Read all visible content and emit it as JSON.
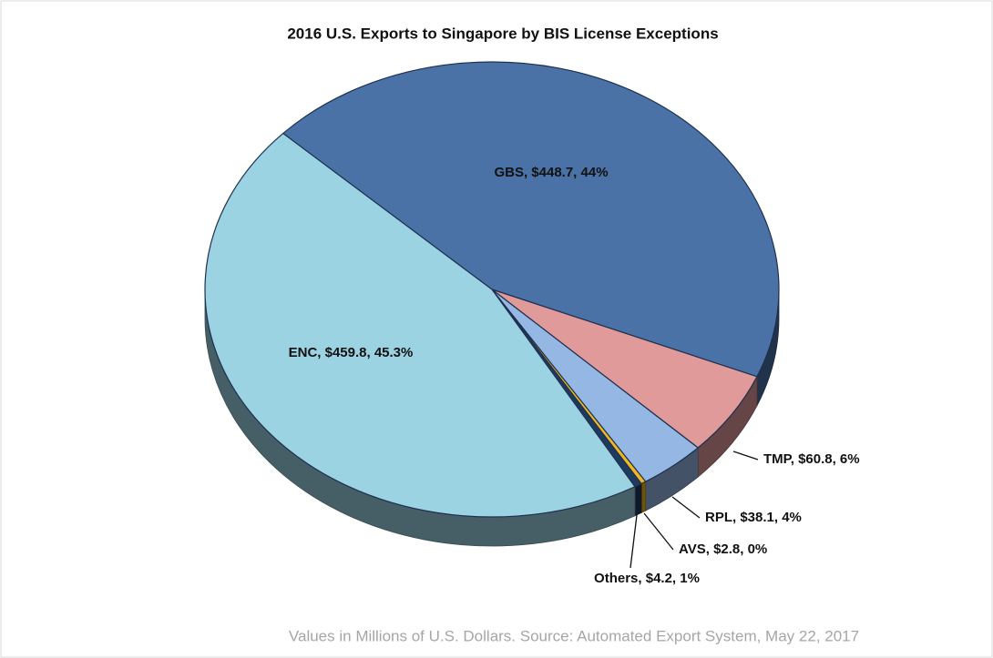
{
  "chart_data": {
    "type": "pie",
    "title": "2016 U.S. Exports to Singapore by BIS License Exceptions",
    "categories": [
      "GBS",
      "TMP",
      "RPL",
      "AVS",
      "Others",
      "ENC"
    ],
    "values": [
      448.7,
      60.8,
      38.1,
      2.8,
      4.2,
      459.8
    ],
    "value_labels": [
      "GBS, $448.7, 44%",
      "TMP, $60.8, 6%",
      "RPL, $38.1, 4%",
      "AVS, $2.8, 0%",
      "Others, $4.2, 1%",
      "ENC, $459.8, 45.3%"
    ],
    "colors": [
      "#4a72a6",
      "#e09a9a",
      "#95b7e3",
      "#f0b820",
      "#1f3a5f",
      "#9bd3e2"
    ],
    "footnote": "Values in Millions of U.S. Dollars.  Source: Automated Export System, May 22, 2017"
  }
}
